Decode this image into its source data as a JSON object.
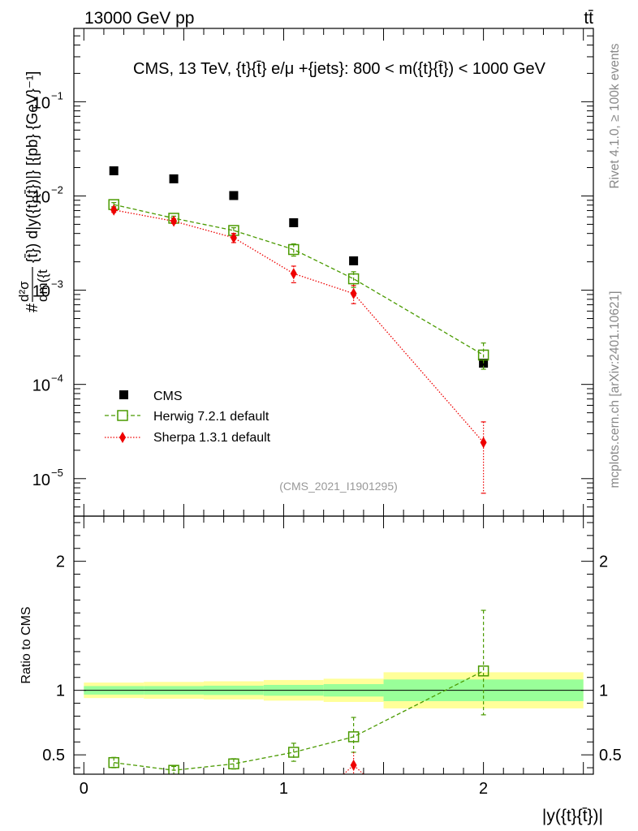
{
  "header": {
    "left": "13000 GeV pp",
    "right": "tt̄"
  },
  "side_labels": {
    "rivet": "Rivet 4.1.0, ≥ 100k events",
    "mcplots": "mcplots.cern.ch [arXiv:2401.10621]"
  },
  "chart_data": [
    {
      "type": "scatter",
      "title": "CMS, 13 TeV, {t}{t̄} e/μ +{jets}: 800 < m({t}{t̄}) < 1000 GeV",
      "watermark": "(CMS_2021_I1901295)",
      "ylabel_prefix": "#",
      "ylabel_num": "d²σ",
      "ylabel_den": "dm({t",
      "ylabel_rest": "{t̄}) d|y({t}{t̄})|} [{pb} {GeV}⁻¹]",
      "yscale": "log",
      "ylim": [
        4e-06,
        0.6
      ],
      "xlim": [
        -0.05,
        2.55
      ],
      "y_ticks": [
        {
          "value": 1e-05,
          "base": "10",
          "exp": "−5"
        },
        {
          "value": 0.0001,
          "base": "10",
          "exp": "−4"
        },
        {
          "value": 0.001,
          "base": "10",
          "exp": "−3"
        },
        {
          "value": 0.01,
          "base": "10",
          "exp": "−2"
        },
        {
          "value": 0.1,
          "base": "10",
          "exp": "−1"
        }
      ],
      "legend_position": "bottom-left",
      "series": [
        {
          "name": "CMS",
          "color": "#000000",
          "marker": "filled-square",
          "x": [
            0.15,
            0.45,
            0.75,
            1.05,
            1.35,
            2.0
          ],
          "values": [
            0.0185,
            0.0152,
            0.0101,
            0.0052,
            0.00205,
            0.000168
          ]
        },
        {
          "name": "Herwig 7.2.1 default",
          "color": "#4a9a00",
          "marker": "open-square",
          "line": "dashed",
          "x": [
            0.15,
            0.45,
            0.75,
            1.05,
            1.35,
            2.0
          ],
          "values": [
            0.0081,
            0.0058,
            0.0043,
            0.0027,
            0.00132,
            0.000205
          ],
          "err_low": [
            0.0004,
            0.0003,
            0.0003,
            0.0004,
            0.00025,
            6e-05
          ],
          "err_high": [
            0.0004,
            0.0003,
            0.0003,
            0.0004,
            0.00025,
            7e-05
          ]
        },
        {
          "name": "Sherpa 1.3.1 default",
          "color": "#ee0000",
          "marker": "filled-diamond",
          "line": "dotted",
          "x": [
            0.15,
            0.45,
            0.75,
            1.05,
            1.35,
            2.0
          ],
          "values": [
            0.0071,
            0.0054,
            0.0036,
            0.0015,
            0.00092,
            2.42e-05
          ],
          "err_low": [
            0.0004,
            0.0003,
            0.0004,
            0.0003,
            0.0002,
            1.72e-05
          ],
          "err_high": [
            0.0004,
            0.0003,
            0.0004,
            0.0003,
            0.0002,
            1.58e-05
          ]
        }
      ]
    },
    {
      "type": "line",
      "ylabel": "Ratio to CMS",
      "xlabel": "|y({t}{t̄})|",
      "ylim": [
        0.35,
        2.35
      ],
      "xlim": [
        -0.05,
        2.55
      ],
      "x_ticks": [
        {
          "value": 0,
          "label": "0"
        },
        {
          "value": 1,
          "label": "1"
        },
        {
          "value": 2,
          "label": "2"
        }
      ],
      "y_ticks": [
        {
          "value": 0.5,
          "label": "0.5"
        },
        {
          "value": 1,
          "label": "1"
        },
        {
          "value": 2,
          "label": "2"
        }
      ],
      "bins": [
        0.0,
        0.3,
        0.6,
        0.9,
        1.2,
        1.5,
        2.5
      ],
      "band_inner": [
        0.055,
        0.055,
        0.06,
        0.07,
        0.08,
        0.14
      ],
      "band_outer": [
        0.06,
        0.065,
        0.07,
        0.08,
        0.09,
        0.14
      ],
      "band_outer_bottom": [
        0.06,
        0.065,
        0.07,
        0.08,
        0.09,
        0.14
      ],
      "band_colors": {
        "inner": "#99ff99",
        "outer": "#ffff99"
      },
      "series": [
        {
          "name": "Herwig 7.2.1 default",
          "color": "#4a9a00",
          "x": [
            0.15,
            0.45,
            0.75,
            1.05,
            1.35,
            2.0
          ],
          "values": [
            0.44,
            0.38,
            0.43,
            0.52,
            0.64,
            1.15
          ],
          "err_low": [
            0.04,
            0.03,
            0.04,
            0.07,
            0.12,
            0.34
          ],
          "err_high": [
            0.04,
            0.03,
            0.04,
            0.07,
            0.15,
            0.47
          ]
        },
        {
          "name": "Sherpa 1.3.1 default",
          "color": "#ee0000",
          "x": [
            1.35
          ],
          "values": [
            0.42
          ],
          "err_low": [
            0.1
          ],
          "err_high": [
            0.1
          ],
          "clip_x": [
            1.3,
            1.4
          ]
        }
      ]
    }
  ]
}
